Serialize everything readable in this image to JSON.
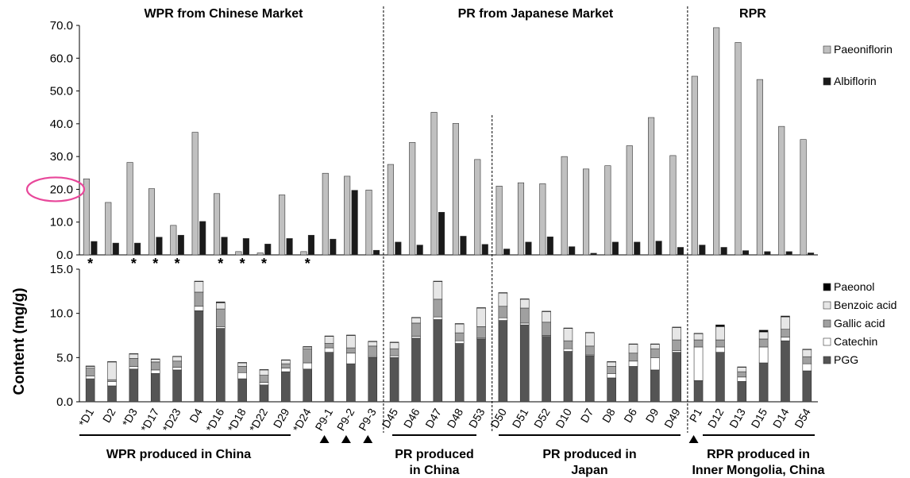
{
  "chart_data": [
    {
      "type": "bar",
      "ylabel": "Content (mg/g)",
      "ylim": [
        0,
        70
      ],
      "yticks": [
        "0.0",
        "10.0",
        "20.0",
        "30.0",
        "40.0",
        "50.0",
        "60.0",
        "70.0"
      ],
      "highlighted_tick": "20.0",
      "categories": [
        "D1",
        "D2",
        "D3",
        "D17",
        "D23",
        "D4",
        "D16",
        "D18",
        "D22",
        "D29",
        "D24",
        "P9-1",
        "P9-2",
        "P9-3",
        "D45",
        "D46",
        "D47",
        "D48",
        "D53",
        "D50",
        "D51",
        "D52",
        "D10",
        "D7",
        "D8",
        "D6",
        "D9",
        "D49",
        "P1",
        "D12",
        "D13",
        "D15",
        "D14",
        "D54"
      ],
      "series": [
        {
          "name": "Paeoniflorin",
          "color": "#c0c0c0",
          "values": [
            23.2,
            16.0,
            28.2,
            20.2,
            9.0,
            37.4,
            18.7,
            1.0,
            0.6,
            18.3,
            1.0,
            24.9,
            24.0,
            19.8,
            27.6,
            34.3,
            43.5,
            40.1,
            29.1,
            21.0,
            22.0,
            21.7,
            30.0,
            26.2,
            27.2,
            33.3,
            41.9,
            30.3,
            54.5,
            69.3,
            64.8,
            53.5,
            39.2,
            35.2
          ]
        },
        {
          "name": "Albiflorin",
          "color": "#1a1a1a",
          "values": [
            4.1,
            3.6,
            3.6,
            5.4,
            6.0,
            10.2,
            5.4,
            5.0,
            3.3,
            5.0,
            6.0,
            4.8,
            19.7,
            1.4,
            3.9,
            3.0,
            13.0,
            5.7,
            3.2,
            1.8,
            3.9,
            5.5,
            2.5,
            0.5,
            3.9,
            3.9,
            4.2,
            2.3,
            3.0,
            2.3,
            1.3,
            1.0,
            1.0,
            0.6
          ]
        }
      ],
      "marked_with_asterisk": [
        "D1",
        "D3",
        "D17",
        "D23",
        "D16",
        "D18",
        "D22",
        "D24"
      ],
      "sections": [
        "WPR from Chinese Market",
        "PR from Japanese Market",
        "RPR"
      ]
    },
    {
      "type": "bar",
      "stacked": true,
      "ylim": [
        0,
        15
      ],
      "yticks": [
        "0.0",
        "5.0",
        "10.0",
        "15.0"
      ],
      "categories": [
        "D1",
        "D2",
        "D3",
        "D17",
        "D23",
        "D4",
        "D16",
        "D18",
        "D22",
        "D29",
        "D24",
        "P9-1",
        "P9-2",
        "P9-3",
        "D45",
        "D46",
        "D47",
        "D48",
        "D53",
        "D50",
        "D51",
        "D52",
        "D10",
        "D7",
        "D8",
        "D6",
        "D9",
        "D49",
        "P1",
        "D12",
        "D13",
        "D15",
        "D14",
        "D54"
      ],
      "category_labels": [
        "*D1",
        "D2",
        "*D3",
        "*D17",
        "*D23",
        "D4",
        "*D16",
        "*D18",
        "*D22",
        "D29",
        "*D24",
        "P9-1",
        "P9-2",
        "P9-3",
        "D45",
        "D46",
        "D47",
        "D48",
        "D53",
        "D50",
        "D51",
        "D52",
        "D10",
        "D7",
        "D8",
        "D6",
        "D9",
        "D49",
        "P1",
        "D12",
        "D13",
        "D15",
        "D14",
        "D54"
      ],
      "series": [
        {
          "name": "PGG",
          "color": "#555555",
          "values": [
            2.6,
            1.8,
            3.7,
            3.2,
            3.6,
            10.3,
            8.3,
            2.6,
            1.9,
            3.4,
            3.7,
            5.6,
            4.3,
            5.0,
            5.0,
            7.2,
            9.3,
            6.6,
            7.1,
            9.2,
            8.7,
            7.4,
            5.7,
            5.2,
            2.7,
            4.0,
            3.6,
            5.6,
            2.4,
            5.6,
            2.3,
            4.4,
            6.9,
            3.5
          ]
        },
        {
          "name": "Catechin",
          "color": "#ffffff",
          "values": [
            0.3,
            0.5,
            0.3,
            0.4,
            0.3,
            0.5,
            0.2,
            0.7,
            0.3,
            0.4,
            0.7,
            0.5,
            1.2,
            0.1,
            0.2,
            0.2,
            0.3,
            0.3,
            0.1,
            0.3,
            0.2,
            0.1,
            0.3,
            0.1,
            0.5,
            0.6,
            1.4,
            0.2,
            3.8,
            0.6,
            0.5,
            1.8,
            0.4,
            0.8
          ]
        },
        {
          "name": "Gallic acid",
          "color": "#a0a0a0",
          "values": [
            0.9,
            0.2,
            0.9,
            0.9,
            0.7,
            1.6,
            2.0,
            0.7,
            0.8,
            0.5,
            1.6,
            0.5,
            0.6,
            1.2,
            0.8,
            1.5,
            2.0,
            0.9,
            1.3,
            1.3,
            1.7,
            1.5,
            0.9,
            1.0,
            0.8,
            0.9,
            1.0,
            1.2,
            0.8,
            0.8,
            0.6,
            0.9,
            0.9,
            0.8
          ]
        },
        {
          "name": "Benzoic acid",
          "color": "#e6e6e6",
          "values": [
            0.2,
            2.0,
            0.5,
            0.3,
            0.5,
            1.2,
            0.7,
            0.4,
            0.6,
            0.4,
            0.2,
            0.8,
            1.4,
            0.5,
            0.7,
            0.6,
            2.0,
            1.0,
            2.1,
            1.5,
            1.0,
            1.2,
            1.4,
            1.5,
            0.5,
            1.0,
            0.5,
            1.4,
            0.7,
            1.5,
            0.5,
            0.8,
            1.4,
            0.8
          ]
        },
        {
          "name": "Paeonol",
          "color": "#000000",
          "values": [
            0.05,
            0.05,
            0.05,
            0.05,
            0.05,
            0.05,
            0.1,
            0.05,
            0.05,
            0.05,
            0.05,
            0.05,
            0.05,
            0.05,
            0.05,
            0.05,
            0.05,
            0.05,
            0.05,
            0.05,
            0.05,
            0.05,
            0.05,
            0.05,
            0.05,
            0.05,
            0.05,
            0.05,
            0.05,
            0.2,
            0.05,
            0.2,
            0.1,
            0.05
          ]
        }
      ],
      "triangle_marked": [
        "P9-1",
        "P9-2",
        "P9-3",
        "P1"
      ],
      "group_labels": [
        [
          "WPR produced in China"
        ],
        [
          "PR produced",
          "in China"
        ],
        [
          "PR produced in",
          "Japan"
        ],
        [
          "RPR produced in",
          "Inner Mongolia, China"
        ]
      ]
    }
  ]
}
